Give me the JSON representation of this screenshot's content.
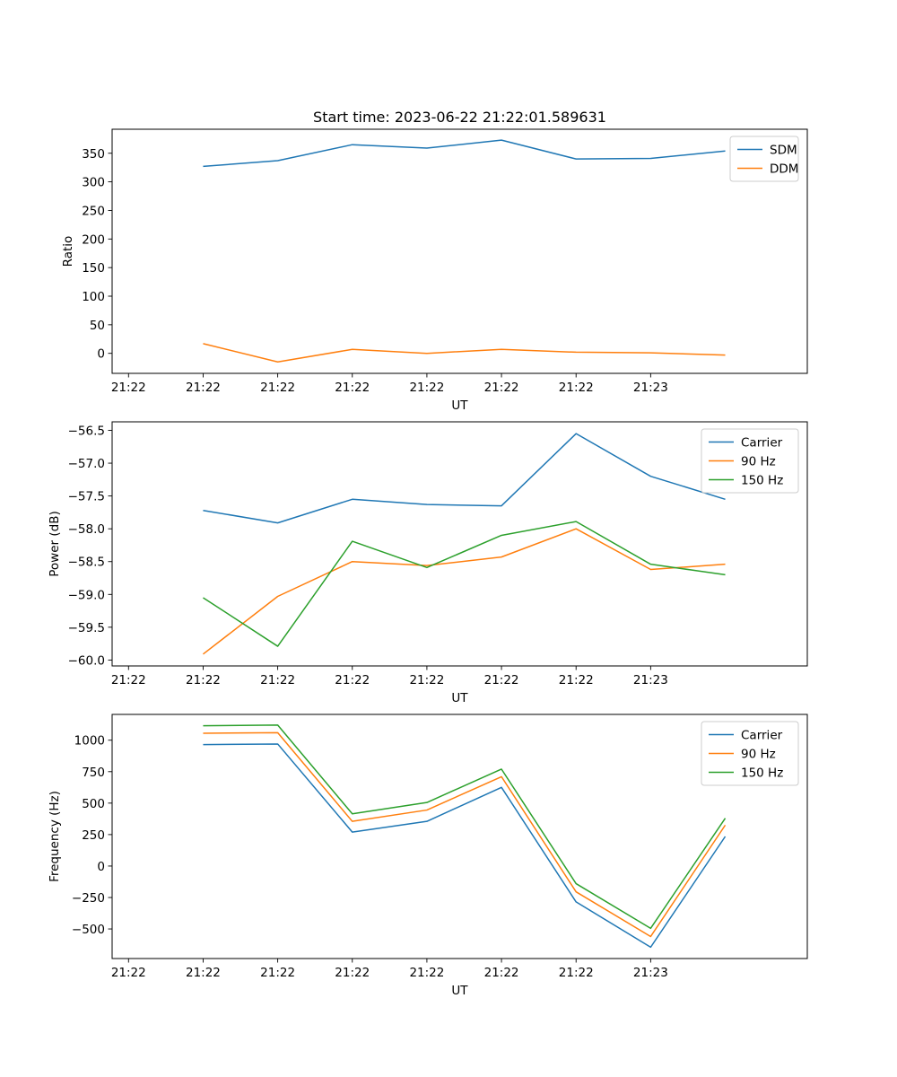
{
  "chart_data": [
    {
      "type": "line",
      "title": "Start time: 2023-06-22 21:22:01.589631",
      "xlabel": "UT",
      "ylabel": "Ratio",
      "x_tick_labels": [
        "21:22",
        "21:22",
        "21:22",
        "21:22",
        "21:22",
        "21:22",
        "21:22"
      ],
      "x_last_tick_label": "21:23",
      "x_points": [
        1,
        2,
        3,
        4,
        5,
        6,
        7,
        8
      ],
      "xlim": [
        -0.22,
        9.1
      ],
      "ylim": [
        -35,
        392
      ],
      "y_ticks": [
        0,
        50,
        100,
        150,
        200,
        250,
        300,
        350
      ],
      "legend_position": "upper right",
      "grid": false,
      "series": [
        {
          "name": "SDM",
          "color": "#1f77b4",
          "values": [
            327,
            337,
            365,
            359,
            373,
            340,
            341,
            354
          ]
        },
        {
          "name": "DDM",
          "color": "#ff7f0e",
          "values": [
            17,
            -15,
            7,
            0,
            7,
            2,
            1,
            -3
          ]
        }
      ]
    },
    {
      "type": "line",
      "title": "",
      "xlabel": "UT",
      "ylabel": "Power (dB)",
      "x_tick_labels": [
        "21:22",
        "21:22",
        "21:22",
        "21:22",
        "21:22",
        "21:22",
        "21:22"
      ],
      "x_last_tick_label": "21:23",
      "x_points": [
        1,
        2,
        3,
        4,
        5,
        6,
        7,
        8
      ],
      "xlim": [
        -0.22,
        9.1
      ],
      "ylim": [
        -60.09,
        -56.37
      ],
      "y_ticks": [
        -60.0,
        -59.5,
        -59.0,
        -58.5,
        -58.0,
        -57.5,
        -57.0,
        -56.5
      ],
      "legend_position": "upper right",
      "grid": false,
      "series": [
        {
          "name": "Carrier",
          "color": "#1f77b4",
          "values": [
            -57.72,
            -57.91,
            -57.55,
            -57.63,
            -57.65,
            -56.55,
            -57.2,
            -57.55
          ]
        },
        {
          "name": "90 Hz",
          "color": "#ff7f0e",
          "values": [
            -59.91,
            -59.03,
            -58.5,
            -58.56,
            -58.43,
            -58.0,
            -58.62,
            -58.54
          ]
        },
        {
          "name": "150 Hz",
          "color": "#2ca02c",
          "values": [
            -59.05,
            -59.79,
            -58.19,
            -58.59,
            -58.1,
            -57.89,
            -58.54,
            -58.7
          ]
        }
      ]
    },
    {
      "type": "line",
      "title": "",
      "xlabel": "UT",
      "ylabel": "Frequency (Hz)",
      "x_tick_labels": [
        "21:22",
        "21:22",
        "21:22",
        "21:22",
        "21:22",
        "21:22",
        "21:22"
      ],
      "x_last_tick_label": "21:23",
      "x_points": [
        1,
        2,
        3,
        4,
        5,
        6,
        7,
        8
      ],
      "xlim": [
        -0.22,
        9.1
      ],
      "ylim": [
        -735,
        1205
      ],
      "y_ticks": [
        -500,
        -250,
        0,
        250,
        500,
        750,
        1000
      ],
      "legend_position": "upper right",
      "grid": false,
      "series": [
        {
          "name": "Carrier",
          "color": "#1f77b4",
          "values": [
            965,
            970,
            270,
            355,
            625,
            -285,
            -645,
            235
          ]
        },
        {
          "name": "90 Hz",
          "color": "#ff7f0e",
          "values": [
            1055,
            1060,
            355,
            445,
            710,
            -205,
            -560,
            325
          ]
        },
        {
          "name": "150 Hz",
          "color": "#2ca02c",
          "values": [
            1115,
            1120,
            415,
            505,
            770,
            -140,
            -495,
            380
          ]
        }
      ]
    }
  ]
}
